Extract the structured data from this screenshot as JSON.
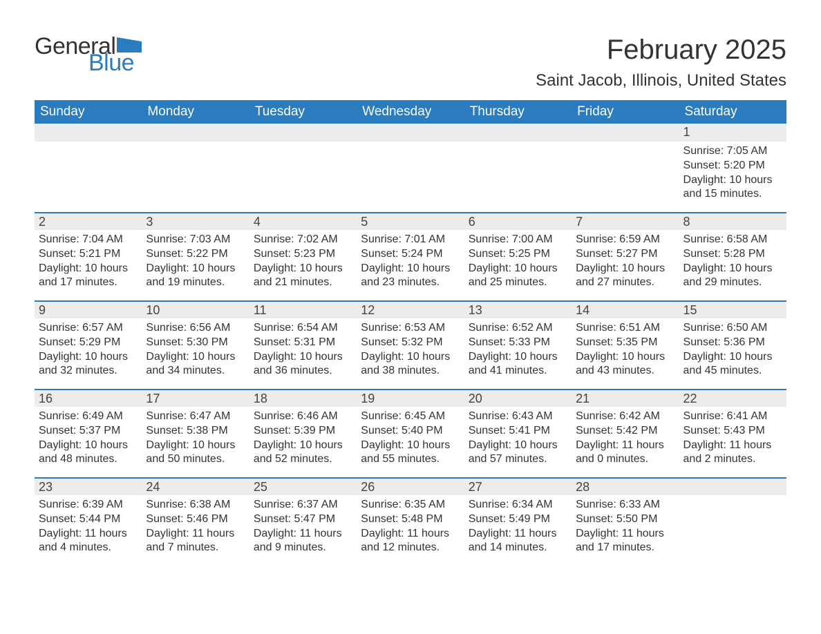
{
  "logo": {
    "general": "General",
    "blue": "Blue",
    "icon_color": "#2b7bbf"
  },
  "title": "February 2025",
  "location": "Saint Jacob, Illinois, United States",
  "header_bg": "#2b7bbf",
  "header_text": "#ffffff",
  "daynum_bg": "#ececec",
  "border_color": "#2b7bbf",
  "weekdays": [
    "Sunday",
    "Monday",
    "Tuesday",
    "Wednesday",
    "Thursday",
    "Friday",
    "Saturday"
  ],
  "weeks": [
    [
      null,
      null,
      null,
      null,
      null,
      null,
      {
        "d": "1",
        "sunrise": "7:05 AM",
        "sunset": "5:20 PM",
        "daylight": "10 hours and 15 minutes."
      }
    ],
    [
      {
        "d": "2",
        "sunrise": "7:04 AM",
        "sunset": "5:21 PM",
        "daylight": "10 hours and 17 minutes."
      },
      {
        "d": "3",
        "sunrise": "7:03 AM",
        "sunset": "5:22 PM",
        "daylight": "10 hours and 19 minutes."
      },
      {
        "d": "4",
        "sunrise": "7:02 AM",
        "sunset": "5:23 PM",
        "daylight": "10 hours and 21 minutes."
      },
      {
        "d": "5",
        "sunrise": "7:01 AM",
        "sunset": "5:24 PM",
        "daylight": "10 hours and 23 minutes."
      },
      {
        "d": "6",
        "sunrise": "7:00 AM",
        "sunset": "5:25 PM",
        "daylight": "10 hours and 25 minutes."
      },
      {
        "d": "7",
        "sunrise": "6:59 AM",
        "sunset": "5:27 PM",
        "daylight": "10 hours and 27 minutes."
      },
      {
        "d": "8",
        "sunrise": "6:58 AM",
        "sunset": "5:28 PM",
        "daylight": "10 hours and 29 minutes."
      }
    ],
    [
      {
        "d": "9",
        "sunrise": "6:57 AM",
        "sunset": "5:29 PM",
        "daylight": "10 hours and 32 minutes."
      },
      {
        "d": "10",
        "sunrise": "6:56 AM",
        "sunset": "5:30 PM",
        "daylight": "10 hours and 34 minutes."
      },
      {
        "d": "11",
        "sunrise": "6:54 AM",
        "sunset": "5:31 PM",
        "daylight": "10 hours and 36 minutes."
      },
      {
        "d": "12",
        "sunrise": "6:53 AM",
        "sunset": "5:32 PM",
        "daylight": "10 hours and 38 minutes."
      },
      {
        "d": "13",
        "sunrise": "6:52 AM",
        "sunset": "5:33 PM",
        "daylight": "10 hours and 41 minutes."
      },
      {
        "d": "14",
        "sunrise": "6:51 AM",
        "sunset": "5:35 PM",
        "daylight": "10 hours and 43 minutes."
      },
      {
        "d": "15",
        "sunrise": "6:50 AM",
        "sunset": "5:36 PM",
        "daylight": "10 hours and 45 minutes."
      }
    ],
    [
      {
        "d": "16",
        "sunrise": "6:49 AM",
        "sunset": "5:37 PM",
        "daylight": "10 hours and 48 minutes."
      },
      {
        "d": "17",
        "sunrise": "6:47 AM",
        "sunset": "5:38 PM",
        "daylight": "10 hours and 50 minutes."
      },
      {
        "d": "18",
        "sunrise": "6:46 AM",
        "sunset": "5:39 PM",
        "daylight": "10 hours and 52 minutes."
      },
      {
        "d": "19",
        "sunrise": "6:45 AM",
        "sunset": "5:40 PM",
        "daylight": "10 hours and 55 minutes."
      },
      {
        "d": "20",
        "sunrise": "6:43 AM",
        "sunset": "5:41 PM",
        "daylight": "10 hours and 57 minutes."
      },
      {
        "d": "21",
        "sunrise": "6:42 AM",
        "sunset": "5:42 PM",
        "daylight": "11 hours and 0 minutes."
      },
      {
        "d": "22",
        "sunrise": "6:41 AM",
        "sunset": "5:43 PM",
        "daylight": "11 hours and 2 minutes."
      }
    ],
    [
      {
        "d": "23",
        "sunrise": "6:39 AM",
        "sunset": "5:44 PM",
        "daylight": "11 hours and 4 minutes."
      },
      {
        "d": "24",
        "sunrise": "6:38 AM",
        "sunset": "5:46 PM",
        "daylight": "11 hours and 7 minutes."
      },
      {
        "d": "25",
        "sunrise": "6:37 AM",
        "sunset": "5:47 PM",
        "daylight": "11 hours and 9 minutes."
      },
      {
        "d": "26",
        "sunrise": "6:35 AM",
        "sunset": "5:48 PM",
        "daylight": "11 hours and 12 minutes."
      },
      {
        "d": "27",
        "sunrise": "6:34 AM",
        "sunset": "5:49 PM",
        "daylight": "11 hours and 14 minutes."
      },
      {
        "d": "28",
        "sunrise": "6:33 AM",
        "sunset": "5:50 PM",
        "daylight": "11 hours and 17 minutes."
      },
      null
    ]
  ],
  "labels": {
    "sunrise": "Sunrise: ",
    "sunset": "Sunset: ",
    "daylight": "Daylight: "
  }
}
